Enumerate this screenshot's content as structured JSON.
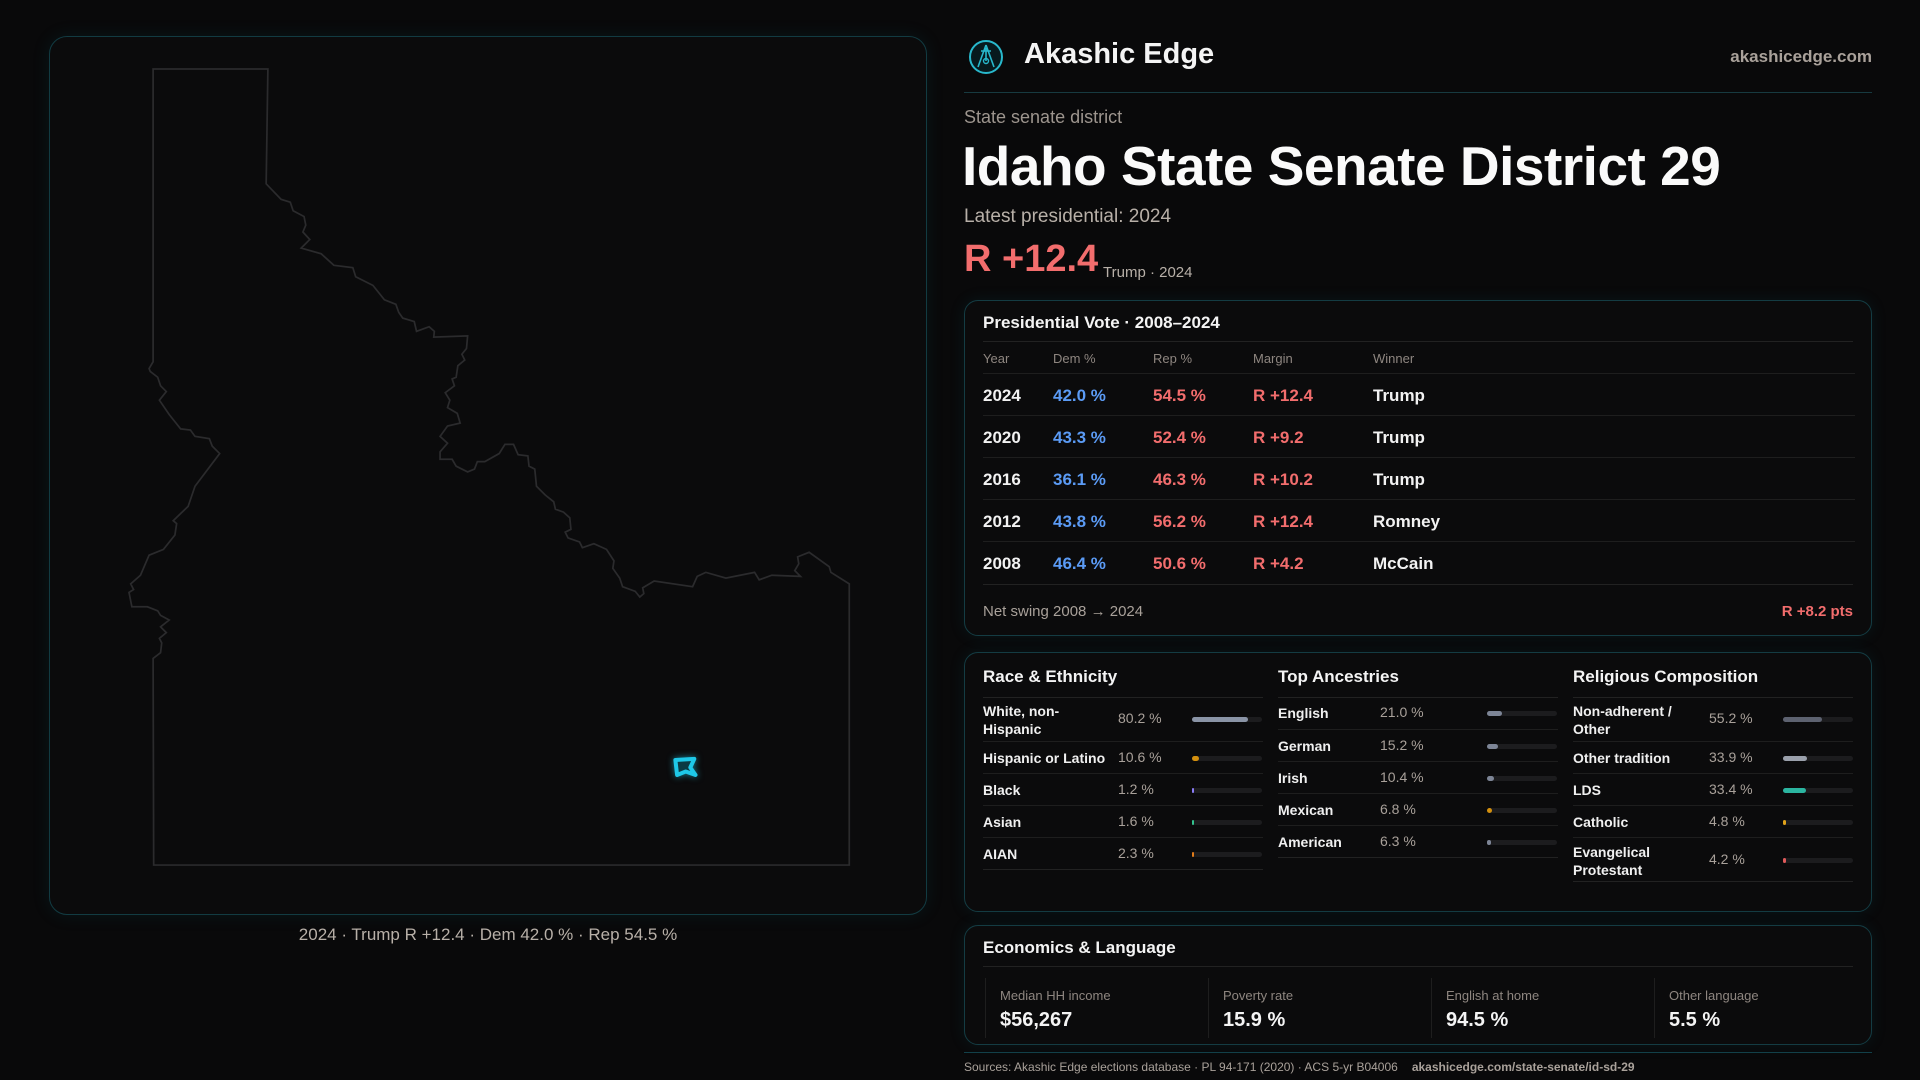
{
  "brand": {
    "name": "Akashic Edge",
    "site": "akashicedge.com",
    "logo_icon": "akashic-edge-logo"
  },
  "district": {
    "kind": "State senate district",
    "title": "Idaho State Senate District 29",
    "latest_label": "Latest presidential: 2024",
    "margin": "R +12.4",
    "margin_sub": "Trump · 2024"
  },
  "map": {
    "caption": "2024 · Trump R +12.4 · Dem 42.0 % · Rep 54.5 %",
    "highlight_color": "#1ec8e8",
    "state": "Idaho"
  },
  "colors": {
    "dem": "#5b9bf5",
    "rep": "#f26d6d",
    "accent": "#1ec8e8"
  },
  "vote": {
    "title": "Presidential Vote · 2008–2024",
    "headers": [
      "Year",
      "Dem %",
      "Rep %",
      "Margin",
      "Winner"
    ],
    "rows": [
      [
        "2024",
        "42.0 %",
        "54.5 %",
        "R +12.4",
        "Trump"
      ],
      [
        "2020",
        "43.3 %",
        "52.4 %",
        "R +9.2",
        "Trump"
      ],
      [
        "2016",
        "36.1 %",
        "46.3 %",
        "R +10.2",
        "Trump"
      ],
      [
        "2012",
        "43.8 %",
        "56.2 %",
        "R +12.4",
        "Romney"
      ],
      [
        "2008",
        "46.4 %",
        "50.6 %",
        "R +4.2",
        "McCain"
      ]
    ],
    "swing_label": "Net swing 2008 → 2024",
    "swing_value": "R +8.2 pts"
  },
  "demographics": [
    {
      "title": "Race & Ethnicity",
      "items": [
        {
          "label": "White, non-Hispanic",
          "pct": "80.2 %",
          "value": 80.2,
          "color": "#8a94a6"
        },
        {
          "label": "Hispanic or Latino",
          "pct": "10.6 %",
          "value": 10.6,
          "color": "#d4900e"
        },
        {
          "label": "Black",
          "pct": "1.2 %",
          "value": 1.2,
          "color": "#8b7cf6"
        },
        {
          "label": "Asian",
          "pct": "1.6 %",
          "value": 1.6,
          "color": "#34c38f"
        },
        {
          "label": "AIAN",
          "pct": "2.3 %",
          "value": 2.3,
          "color": "#e07b1a"
        }
      ]
    },
    {
      "title": "Top Ancestries",
      "items": [
        {
          "label": "English",
          "pct": "21.0 %",
          "value": 21.0,
          "color": "#7d8596"
        },
        {
          "label": "German",
          "pct": "15.2 %",
          "value": 15.2,
          "color": "#7d8596"
        },
        {
          "label": "Irish",
          "pct": "10.4 %",
          "value": 10.4,
          "color": "#7d8596"
        },
        {
          "label": "Mexican",
          "pct": "6.8 %",
          "value": 6.8,
          "color": "#d4900e"
        },
        {
          "label": "American",
          "pct": "6.3 %",
          "value": 6.3,
          "color": "#7d8596"
        }
      ]
    },
    {
      "title": "Religious Composition",
      "items": [
        {
          "label": "Non-adherent / Other",
          "pct": "55.2 %",
          "value": 55.2,
          "color": "#5d6270"
        },
        {
          "label": "Other tradition",
          "pct": "33.9 %",
          "value": 33.9,
          "color": "#9aa0ab"
        },
        {
          "label": "LDS",
          "pct": "33.4 %",
          "value": 33.4,
          "color": "#2bb5a0"
        },
        {
          "label": "Catholic",
          "pct": "4.8 %",
          "value": 4.8,
          "color": "#e0a21a"
        },
        {
          "label": "Evangelical Protestant",
          "pct": "4.2 %",
          "value": 4.2,
          "color": "#e05a5a"
        }
      ]
    }
  ],
  "economics": {
    "title": "Economics & Language",
    "stats": [
      {
        "label": "Median HH income",
        "value": "$56,267"
      },
      {
        "label": "Poverty rate",
        "value": "15.9 %"
      },
      {
        "label": "English at home",
        "value": "94.5 %"
      },
      {
        "label": "Other language",
        "value": "5.5 %"
      }
    ]
  },
  "footer": {
    "sources": "Sources: Akashic Edge elections database · PL 94-171 (2020) · ACS 5-yr B04006",
    "url": "akashicedge.com/state-senate/id-sd-29"
  }
}
